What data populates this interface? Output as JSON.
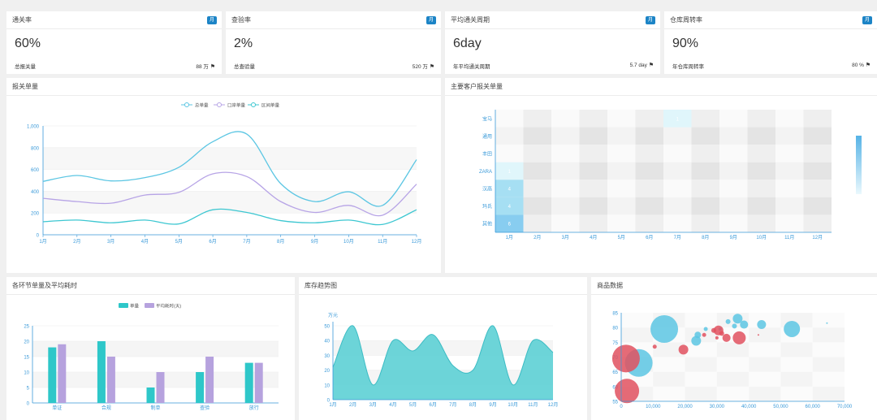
{
  "colors": {
    "cyan": "#5cc6e3",
    "purple": "#b7a4e6",
    "teal": "#2ec7c9",
    "violet": "#b6a2de",
    "red": "#e0515f",
    "heatLow": "#e0f6fb",
    "heatHigh": "#88cdf0",
    "area": "#5dd0d5"
  },
  "kpis": [
    {
      "title": "通关率",
      "badge": "月",
      "value": "60%",
      "label": "总报关量",
      "figure": "88 万"
    },
    {
      "title": "查验率",
      "badge": "月",
      "value": "2%",
      "label": "总查验量",
      "figure": "520 万"
    },
    {
      "title": "平均通关周期",
      "badge": "月",
      "value": "6day",
      "label": "年平均通关周期",
      "figure": "5.7 day"
    },
    {
      "title": "仓库周转率",
      "badge": "月",
      "value": "90%",
      "label": "年仓库周转率",
      "figure": "80 %"
    }
  ],
  "months": [
    "1月",
    "2月",
    "3月",
    "4月",
    "5月",
    "6月",
    "7月",
    "8月",
    "9月",
    "10月",
    "11月",
    "12月"
  ],
  "line_chart": {
    "title": "报关单量",
    "legend": [
      "总单量",
      "口岸单量",
      "区间单量"
    ]
  },
  "heatmap": {
    "title": "主要客户报关单量"
  },
  "bar_chart": {
    "title": "各环节单量及平均耗时",
    "legend": [
      "单量",
      "平均耗时(天)"
    ]
  },
  "area_chart": {
    "title": "库存趋势图",
    "unit": "万元"
  },
  "bubble_chart": {
    "title": "商品数据"
  },
  "chart_data": [
    {
      "type": "line",
      "categories": [
        "1月",
        "2月",
        "3月",
        "4月",
        "5月",
        "6月",
        "7月",
        "8月",
        "9月",
        "10月",
        "11月",
        "12月"
      ],
      "ylim": [
        0,
        1000
      ],
      "yticks": [
        "0",
        "200",
        "400",
        "600",
        "800",
        "1,000"
      ],
      "series": [
        {
          "name": "总单量",
          "values": [
            490,
            545,
            495,
            525,
            620,
            855,
            925,
            470,
            305,
            395,
            270,
            690
          ]
        },
        {
          "name": "口岸单量",
          "values": [
            335,
            305,
            290,
            365,
            390,
            560,
            535,
            305,
            205,
            270,
            180,
            465
          ]
        },
        {
          "name": "区间单量",
          "values": [
            120,
            135,
            110,
            135,
            100,
            230,
            205,
            130,
            110,
            135,
            95,
            230
          ]
        }
      ]
    },
    {
      "type": "heatmap",
      "xcategories": [
        "1月",
        "2月",
        "3月",
        "4月",
        "5月",
        "6月",
        "7月",
        "8月",
        "9月",
        "10月",
        "11月",
        "12月"
      ],
      "ycategories": [
        "宝马",
        "通用",
        "丰田",
        "ZARA",
        "汉高",
        "玛氏",
        "其他"
      ],
      "cells": [
        {
          "x": 6,
          "y": 0,
          "value": 1
        },
        {
          "x": 0,
          "y": 3,
          "value": 1
        },
        {
          "x": 0,
          "y": 4,
          "value": 4
        },
        {
          "x": 0,
          "y": 5,
          "value": 4
        },
        {
          "x": 0,
          "y": 6,
          "value": 6
        }
      ]
    },
    {
      "type": "bar",
      "categories": [
        "单证",
        "合规",
        "制单",
        "查验",
        "放行"
      ],
      "ylim": [
        0,
        25
      ],
      "yticks": [
        "0",
        "5",
        "10",
        "15",
        "20",
        "25"
      ],
      "series": [
        {
          "name": "单量",
          "values": [
            18,
            20,
            5,
            10,
            13
          ]
        },
        {
          "name": "平均耗时(天)",
          "values": [
            19,
            15,
            10,
            15,
            13
          ]
        }
      ]
    },
    {
      "type": "area",
      "categories": [
        "1月",
        "2月",
        "3月",
        "4月",
        "5月",
        "6月",
        "7月",
        "8月",
        "9月",
        "10月",
        "11月",
        "12月"
      ],
      "ylim": [
        0,
        50
      ],
      "yticks": [
        "0",
        "10",
        "20",
        "30",
        "40",
        "50"
      ],
      "values": [
        22,
        50,
        10,
        40,
        33,
        44,
        23,
        20,
        50,
        10,
        40,
        32
      ]
    },
    {
      "type": "scatter",
      "xlim": [
        0,
        70000
      ],
      "ylim": [
        55,
        85
      ],
      "xticks": [
        "0",
        "10,000",
        "20,000",
        "30,000",
        "40,000",
        "50,000",
        "60,000",
        "70,000"
      ],
      "yticks": [
        "55",
        "60",
        "65",
        "70",
        "75",
        "80",
        "85"
      ],
      "series": [
        {
          "name": "",
          "points": [
            [
              13500,
              79.5,
              34
            ],
            [
              5500,
              68,
              34
            ],
            [
              24000,
              77.5,
              8
            ],
            [
              23500,
              75.5,
              12
            ],
            [
              26500,
              79.5,
              5
            ],
            [
              31000,
              79.5,
              4
            ],
            [
              33500,
              82,
              6
            ],
            [
              35500,
              80.5,
              6
            ],
            [
              36500,
              83,
              12
            ],
            [
              38500,
              81,
              10
            ],
            [
              44000,
              81,
              11
            ],
            [
              53500,
              79.5,
              20
            ],
            [
              64500,
              81.5,
              2
            ]
          ]
        },
        {
          "name": "",
          "points": [
            [
              1500,
              69.5,
              34
            ],
            [
              1800,
              58.5,
              30
            ],
            [
              10500,
              73.5,
              5
            ],
            [
              19500,
              72.5,
              12
            ],
            [
              26000,
              77.5,
              5
            ],
            [
              29000,
              79,
              6
            ],
            [
              30500,
              79,
              12
            ],
            [
              31500,
              78,
              6
            ],
            [
              30000,
              76.5,
              4
            ],
            [
              33000,
              76.5,
              10
            ],
            [
              37000,
              76.5,
              16
            ],
            [
              43000,
              77.5,
              2
            ]
          ]
        }
      ]
    }
  ]
}
